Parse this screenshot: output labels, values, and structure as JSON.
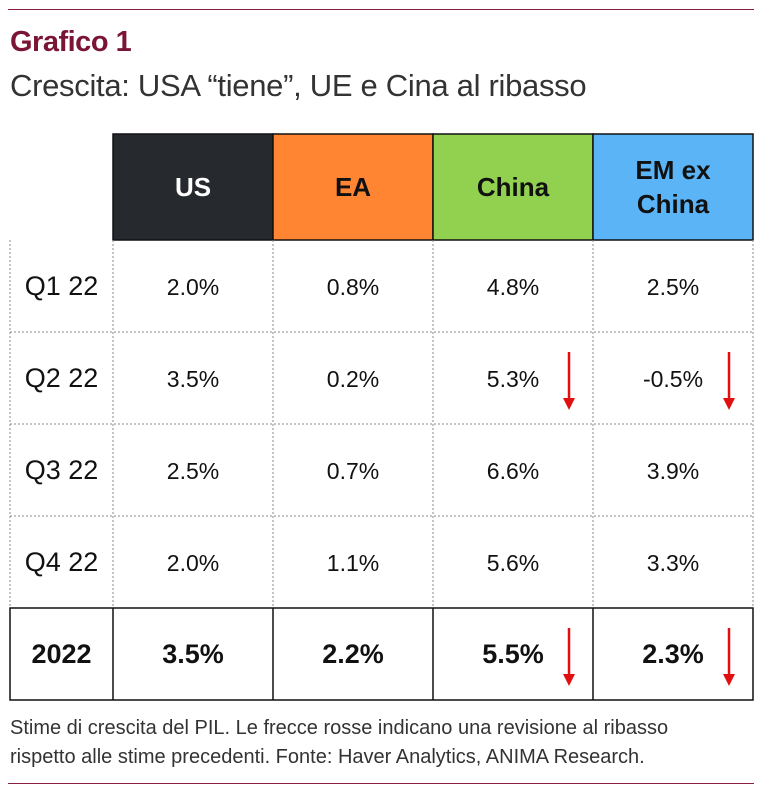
{
  "header": {
    "title": "Grafico 1",
    "subtitle": "Crescita: USA “tiene”, UE e Cina al ribasso"
  },
  "caption": {
    "line1": "Stime di crescita del PIL. Le frecce rosse indicano una revisione al ribasso",
    "line2": "rispetto alle stime precedenti. Fonte: Haver Analytics, ANIMA Research."
  },
  "colors": {
    "accent": "#7a1535",
    "us": "#262a2e",
    "ea": "#ff8533",
    "china": "#92d050",
    "em": "#5ab4f5",
    "arrow": "#e01010"
  },
  "chart_data": {
    "type": "table",
    "columns": [
      {
        "label_lines": [
          "US"
        ],
        "text_color": "#ffffff"
      },
      {
        "label_lines": [
          "EA"
        ],
        "text_color": "#111111"
      },
      {
        "label_lines": [
          "China"
        ],
        "text_color": "#111111"
      },
      {
        "label_lines": [
          "EM ex",
          "China"
        ],
        "text_color": "#111111"
      }
    ],
    "rows": [
      {
        "label": "Q1 22",
        "values": [
          "2.0%",
          "0.8%",
          "4.8%",
          "2.5%"
        ],
        "down": [
          false,
          false,
          false,
          false
        ],
        "bold": false
      },
      {
        "label": "Q2 22",
        "values": [
          "3.5%",
          "0.2%",
          "5.3%",
          "-0.5%"
        ],
        "down": [
          false,
          false,
          true,
          true
        ],
        "bold": false
      },
      {
        "label": "Q3 22",
        "values": [
          "2.5%",
          "0.7%",
          "6.6%",
          "3.9%"
        ],
        "down": [
          false,
          false,
          false,
          false
        ],
        "bold": false
      },
      {
        "label": "Q4 22",
        "values": [
          "2.0%",
          "1.1%",
          "5.6%",
          "3.3%"
        ],
        "down": [
          false,
          false,
          false,
          false
        ],
        "bold": false
      },
      {
        "label": "2022",
        "values": [
          "3.5%",
          "2.2%",
          "5.5%",
          "2.3%"
        ],
        "down": [
          false,
          false,
          true,
          true
        ],
        "bold": true
      }
    ],
    "arrow_meaning": "revisione al ribasso"
  }
}
